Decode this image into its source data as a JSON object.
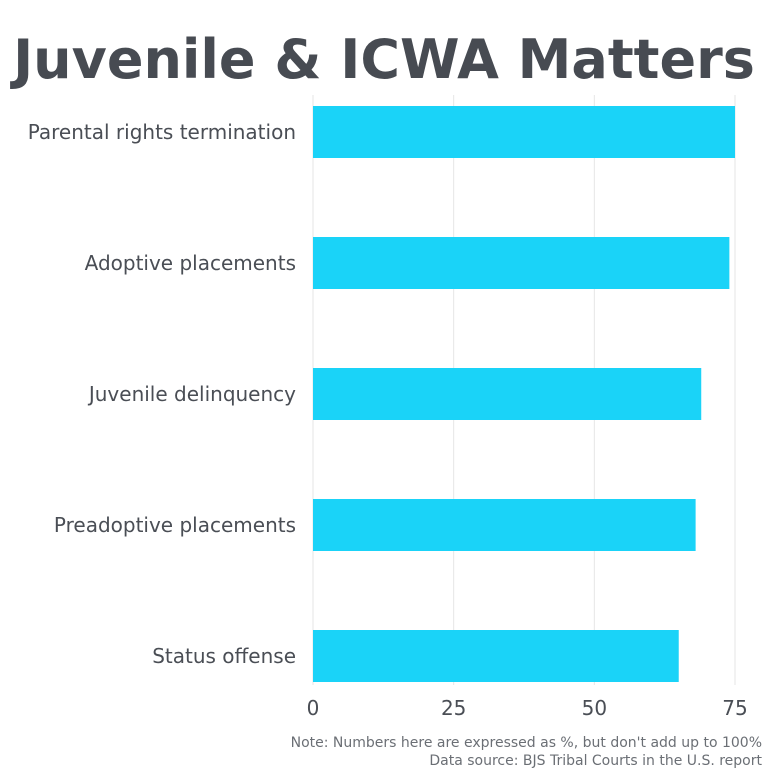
{
  "chart_data": {
    "type": "bar",
    "orientation": "horizontal",
    "title": "Juvenile & ICWA Matters",
    "categories": [
      "Parental rights termination",
      "Adoptive placements",
      "Juvenile delinquency",
      "Preadoptive placements",
      "Status offense"
    ],
    "values": [
      75,
      74,
      69,
      68,
      65
    ],
    "xlim": [
      0,
      75
    ],
    "xticks": [
      "0",
      "25",
      "50",
      "75"
    ],
    "grid": true,
    "bar_color": "#1ad3f8",
    "notes": [
      "Note: Numbers here are expressed as %, but don't add up to 100%",
      "Data source: BJS Tribal Courts in the U.S. report"
    ]
  }
}
